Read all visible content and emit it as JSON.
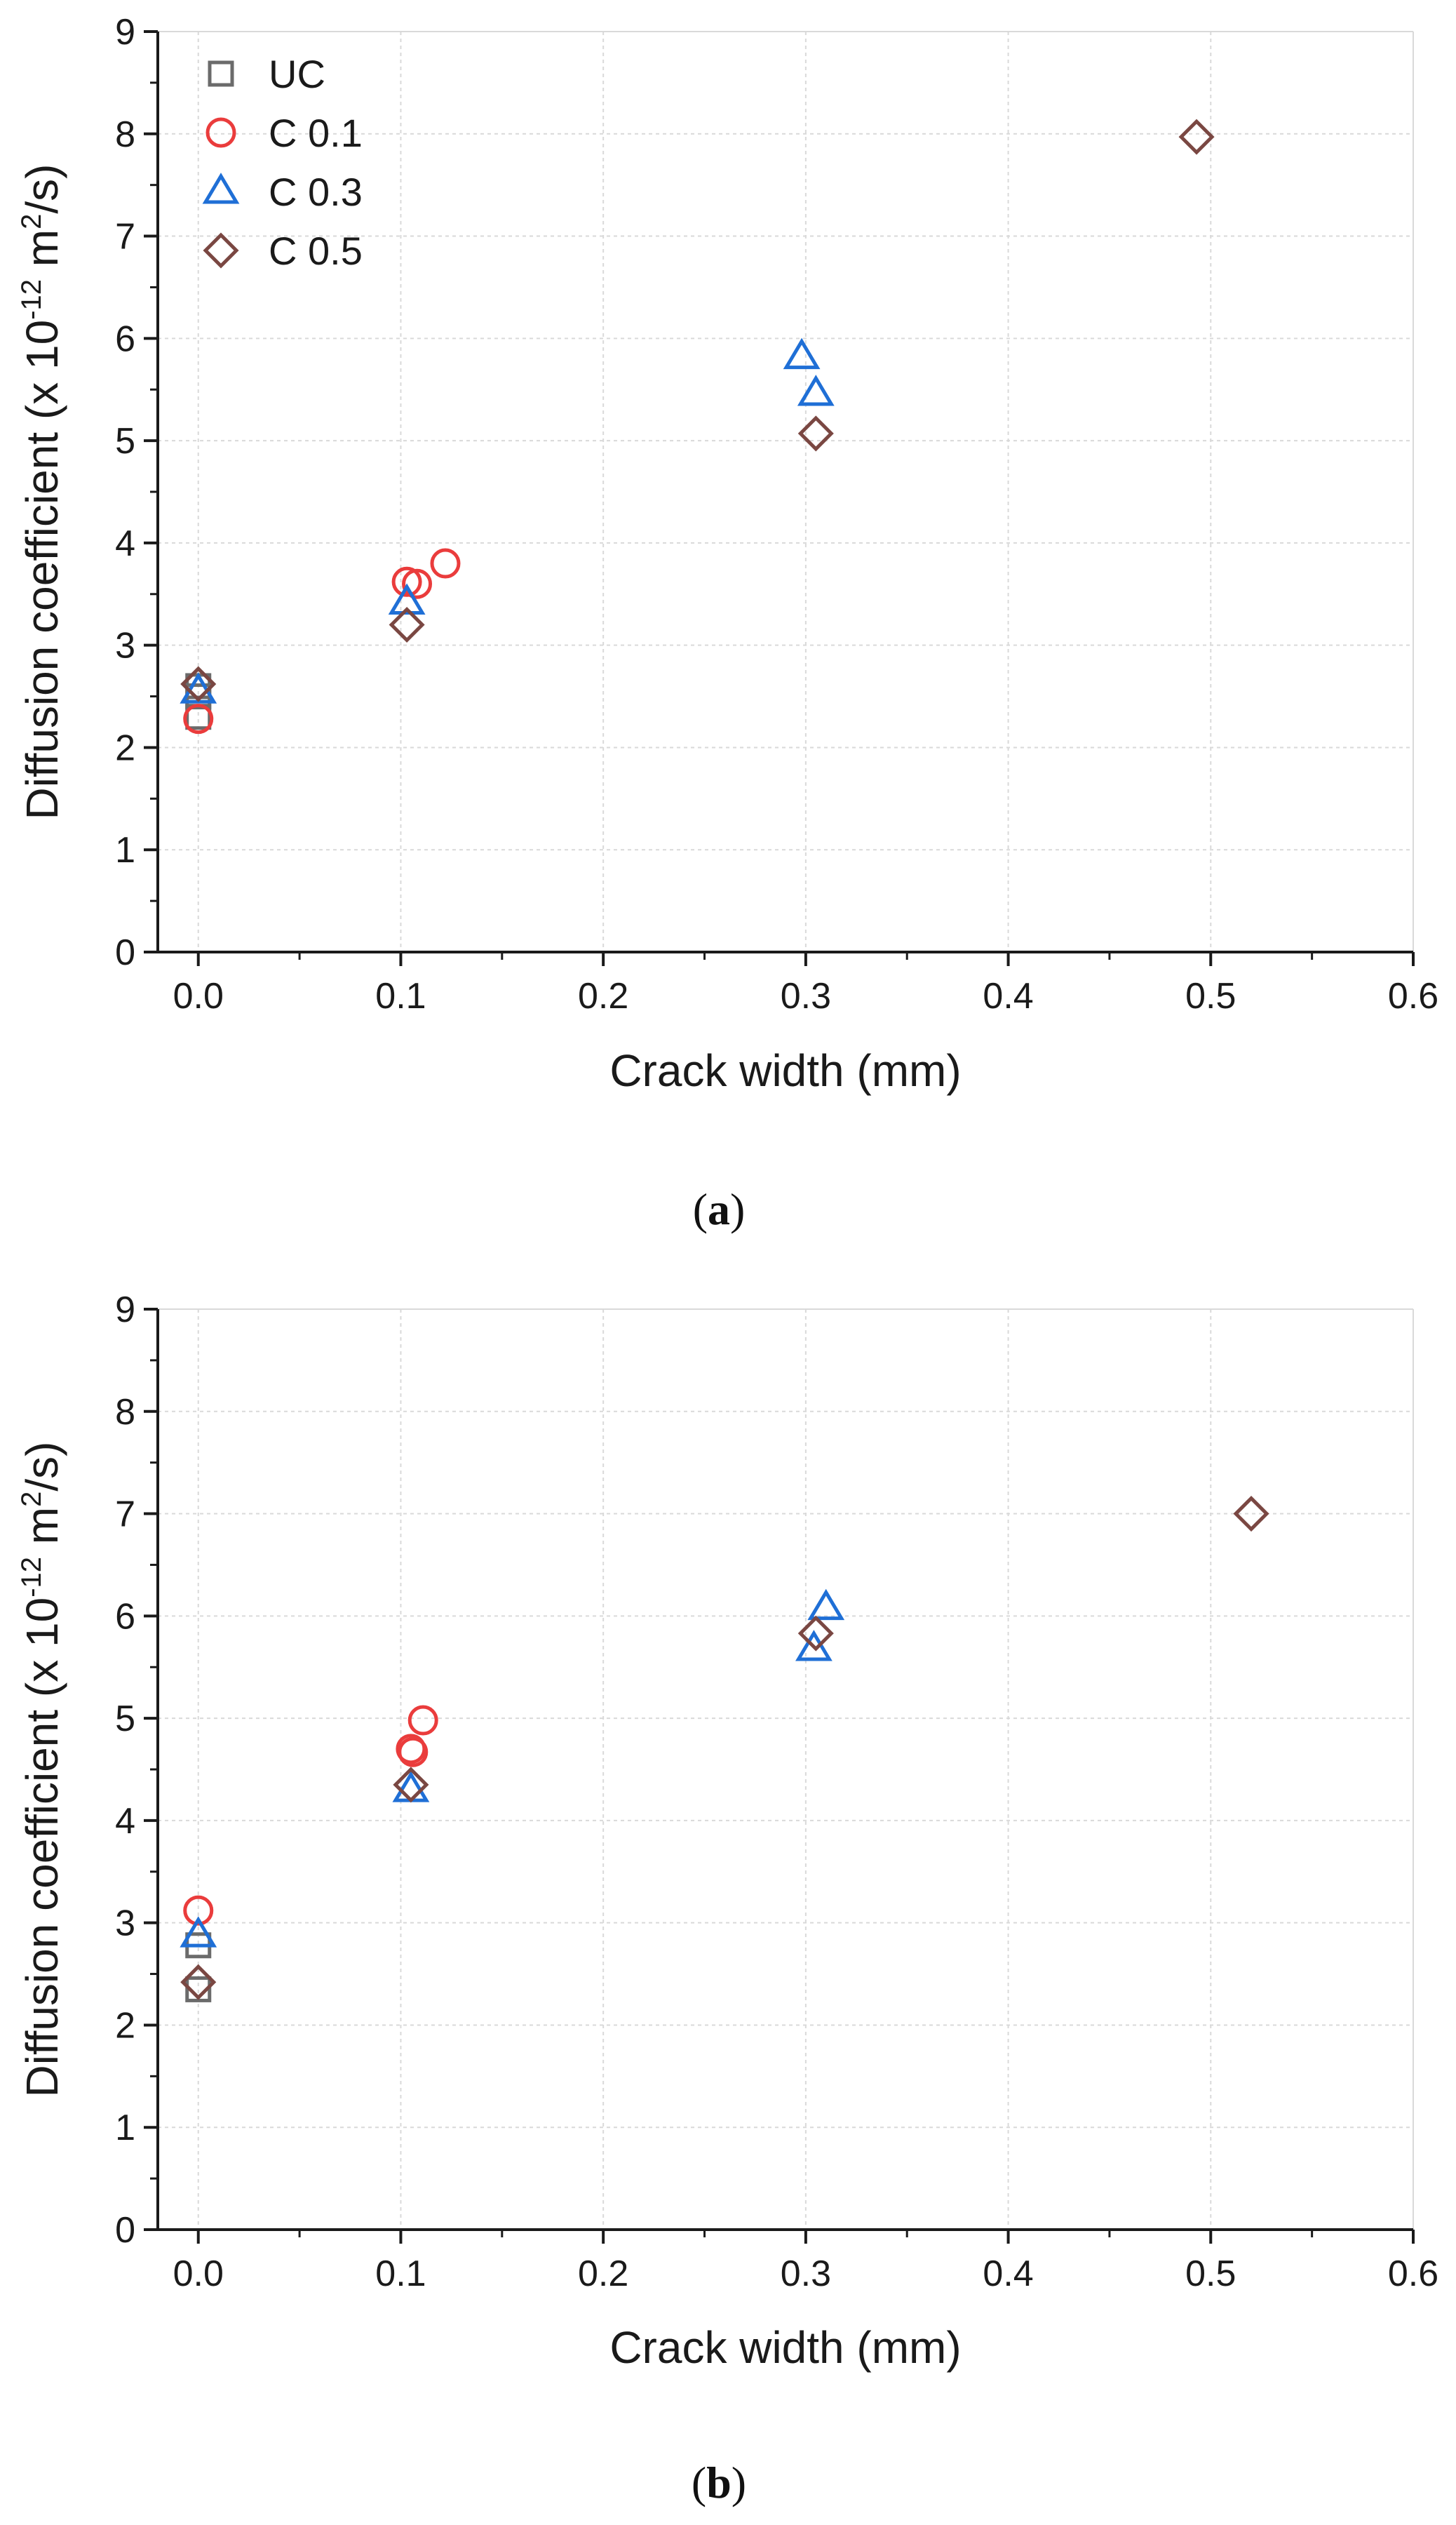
{
  "colors": {
    "UC": "#6b6b6b",
    "C 0.1": "#ea3c3c",
    "C 0.3": "#1f6fd6",
    "C 0.5": "#7a4742",
    "grid": "#d9d9d9",
    "axis": "#1a1a1a"
  },
  "panel_labels": [
    {
      "open": "(",
      "letter": "a",
      "close": ")"
    },
    {
      "open": "(",
      "letter": "b",
      "close": ")"
    }
  ],
  "chart_data": [
    {
      "type": "scatter",
      "xlabel": "Crack width (mm)",
      "ylabel_main": "Diffusion coefficient (x 10",
      "ylabel_exp1": "-12",
      "ylabel_mid": " m",
      "ylabel_exp2": "2",
      "ylabel_end": "/s)",
      "xlim": [
        -0.02,
        0.6
      ],
      "ylim": [
        0,
        9
      ],
      "x_ticks": [
        0.0,
        0.1,
        0.2,
        0.3,
        0.4,
        0.5,
        0.6
      ],
      "x_tick_labels": [
        "0.0",
        "0.1",
        "0.2",
        "0.3",
        "0.4",
        "0.5",
        "0.6"
      ],
      "y_ticks": [
        0,
        1,
        2,
        3,
        4,
        5,
        6,
        7,
        8,
        9
      ],
      "y_tick_labels": [
        "0",
        "1",
        "2",
        "3",
        "4",
        "5",
        "6",
        "7",
        "8",
        "9"
      ],
      "grid": true,
      "legend": {
        "placement": "top-left",
        "show": true
      },
      "series": [
        {
          "name": "UC",
          "marker": "square",
          "points": [
            [
              0.0,
              2.6
            ],
            [
              0.0,
              2.5
            ],
            [
              0.0,
              2.3
            ]
          ]
        },
        {
          "name": "C 0.1",
          "marker": "circle",
          "points": [
            [
              0.0,
              2.28
            ],
            [
              0.103,
              3.62
            ],
            [
              0.108,
              3.6
            ],
            [
              0.122,
              3.8
            ]
          ]
        },
        {
          "name": "C 0.3",
          "marker": "triangle",
          "points": [
            [
              0.0,
              2.55
            ],
            [
              0.103,
              3.42
            ],
            [
              0.298,
              5.82
            ],
            [
              0.305,
              5.46
            ]
          ]
        },
        {
          "name": "C 0.5",
          "marker": "diamond",
          "points": [
            [
              0.0,
              2.62
            ],
            [
              0.103,
              3.2
            ],
            [
              0.305,
              5.07
            ],
            [
              0.493,
              7.97
            ]
          ]
        }
      ]
    },
    {
      "type": "scatter",
      "xlabel": "Crack width (mm)",
      "ylabel_main": "Diffusion coefficient (x 10",
      "ylabel_exp1": "-12",
      "ylabel_mid": " m",
      "ylabel_exp2": "2",
      "ylabel_end": "/s)",
      "xlim": [
        -0.02,
        0.6
      ],
      "ylim": [
        0,
        9
      ],
      "x_ticks": [
        0.0,
        0.1,
        0.2,
        0.3,
        0.4,
        0.5,
        0.6
      ],
      "x_tick_labels": [
        "0.0",
        "0.1",
        "0.2",
        "0.3",
        "0.4",
        "0.5",
        "0.6"
      ],
      "y_ticks": [
        0,
        1,
        2,
        3,
        4,
        5,
        6,
        7,
        8,
        9
      ],
      "y_tick_labels": [
        "0",
        "1",
        "2",
        "3",
        "4",
        "5",
        "6",
        "7",
        "8",
        "9"
      ],
      "grid": true,
      "legend": {
        "show": false
      },
      "series": [
        {
          "name": "UC",
          "marker": "square",
          "points": [
            [
              0.0,
              2.78
            ],
            [
              0.0,
              2.35
            ]
          ]
        },
        {
          "name": "C 0.1",
          "marker": "circle",
          "points": [
            [
              0.0,
              3.12
            ],
            [
              0.105,
              4.7
            ],
            [
              0.106,
              4.67
            ],
            [
              0.111,
              4.98
            ]
          ]
        },
        {
          "name": "C 0.3",
          "marker": "triangle",
          "points": [
            [
              0.0,
              2.88
            ],
            [
              0.105,
              4.3
            ],
            [
              0.304,
              5.68
            ],
            [
              0.31,
              6.08
            ]
          ]
        },
        {
          "name": "C 0.5",
          "marker": "diamond",
          "points": [
            [
              0.0,
              2.42
            ],
            [
              0.105,
              4.35
            ],
            [
              0.305,
              5.83
            ],
            [
              0.52,
              7.0
            ]
          ]
        }
      ]
    }
  ]
}
